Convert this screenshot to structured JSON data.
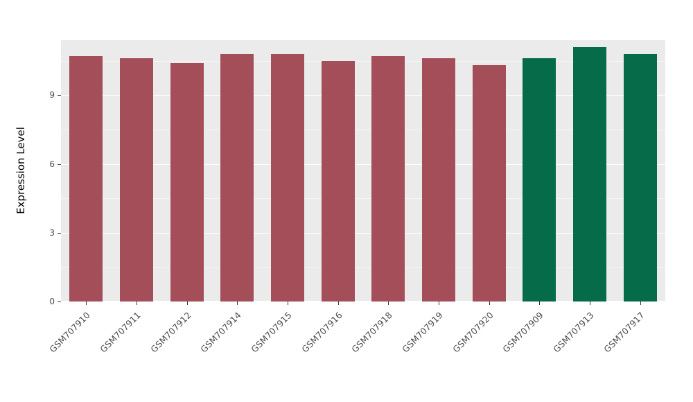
{
  "chart_data": {
    "type": "bar",
    "title": "",
    "xlabel": "",
    "ylabel": "Expression Level",
    "ylim": [
      0,
      11.4
    ],
    "yticks": [
      0,
      3,
      6,
      9
    ],
    "minor_gridlines": [
      1.5,
      4.5,
      7.5,
      10.5
    ],
    "grid": "on",
    "legend": "none",
    "categories": [
      "GSM707910",
      "GSM707911",
      "GSM707912",
      "GSM707914",
      "GSM707915",
      "GSM707916",
      "GSM707918",
      "GSM707919",
      "GSM707920",
      "GSM707909",
      "GSM707913",
      "GSM707917"
    ],
    "values": [
      10.7,
      10.6,
      10.4,
      10.8,
      10.8,
      10.5,
      10.7,
      10.6,
      10.3,
      10.6,
      11.1,
      10.8
    ],
    "bar_colors": [
      "#A34E58",
      "#A34E58",
      "#A34E58",
      "#A34E58",
      "#A34E58",
      "#A34E58",
      "#A34E58",
      "#A34E58",
      "#A34E58",
      "#066B49",
      "#066B49",
      "#066B49"
    ],
    "colors": {
      "group_red": "#A34E58",
      "group_green": "#066B49",
      "panel_background": "#EBEBEB",
      "gridline": "#FFFFFF",
      "axis_text": "#4D4D4D"
    }
  }
}
